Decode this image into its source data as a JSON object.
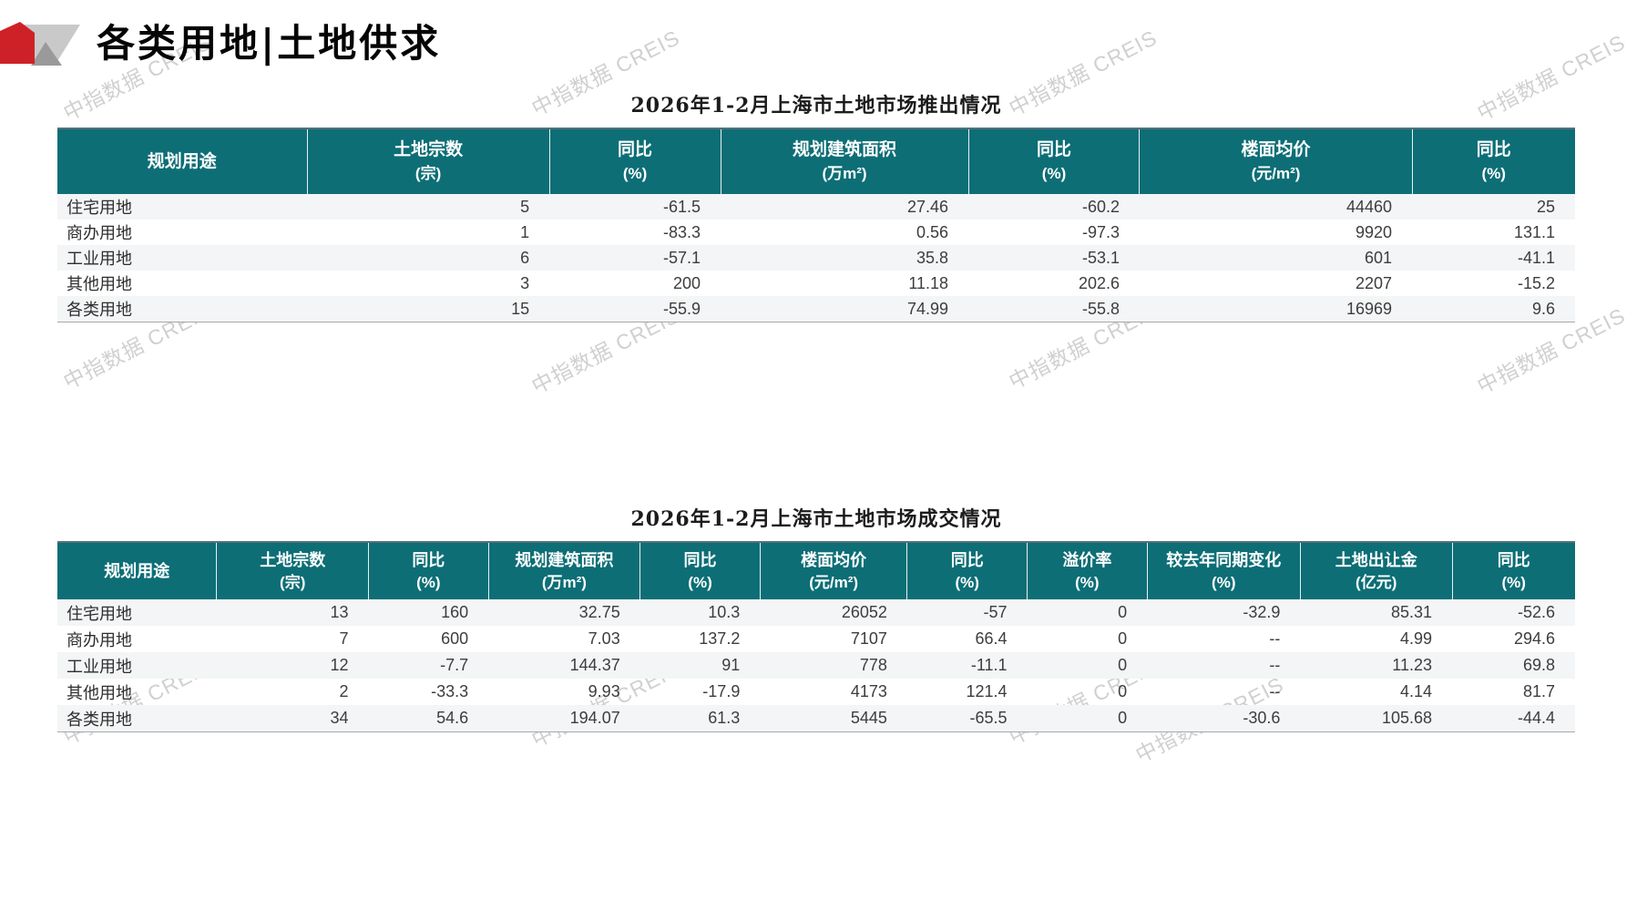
{
  "page": {
    "main_title": "各类用地|土地供求",
    "watermark": "中指数据 CREIS"
  },
  "colors": {
    "header_bg": "#0D6E76",
    "logo_red": "#CE2127",
    "logo_gray_light": "#C9C9C9",
    "logo_gray_dark": "#9A9A9A",
    "row_stripe": "#F3F5F6",
    "watermark_gray": "#C8C8C8"
  },
  "table1": {
    "title": "2026年1-2月上海市土地市场推出情况",
    "columns": [
      {
        "line1": "规划用途",
        "line2": ""
      },
      {
        "line1": "土地宗数",
        "line2": "(宗)"
      },
      {
        "line1": "同比",
        "line2": "(%)"
      },
      {
        "line1": "规划建筑面积",
        "line2": "(万m²)"
      },
      {
        "line1": "同比",
        "line2": "(%)"
      },
      {
        "line1": "楼面均价",
        "line2": "(元/m²)"
      },
      {
        "line1": "同比",
        "line2": "(%)"
      }
    ],
    "rows": [
      [
        "住宅用地",
        "5",
        "-61.5",
        "27.46",
        "-60.2",
        "44460",
        "25"
      ],
      [
        "商办用地",
        "1",
        "-83.3",
        "0.56",
        "-97.3",
        "9920",
        "131.1"
      ],
      [
        "工业用地",
        "6",
        "-57.1",
        "35.8",
        "-53.1",
        "601",
        "-41.1"
      ],
      [
        "其他用地",
        "3",
        "200",
        "11.18",
        "202.6",
        "2207",
        "-15.2"
      ],
      [
        "各类用地",
        "15",
        "-55.9",
        "74.99",
        "-55.8",
        "16969",
        "9.6"
      ]
    ]
  },
  "table2": {
    "title": "2026年1-2月上海市土地市场成交情况",
    "columns": [
      {
        "line1": "规划用途",
        "line2": ""
      },
      {
        "line1": "土地宗数",
        "line2": "(宗)"
      },
      {
        "line1": "同比",
        "line2": "(%)"
      },
      {
        "line1": "规划建筑面积",
        "line2": "(万m²)"
      },
      {
        "line1": "同比",
        "line2": "(%)"
      },
      {
        "line1": "楼面均价",
        "line2": "(元/m²)"
      },
      {
        "line1": "同比",
        "line2": "(%)"
      },
      {
        "line1": "溢价率",
        "line2": "(%)"
      },
      {
        "line1": "较去年同期变化",
        "line2": "(%)"
      },
      {
        "line1": "土地出让金",
        "line2": "(亿元)"
      },
      {
        "line1": "同比",
        "line2": "(%)"
      }
    ],
    "rows": [
      [
        "住宅用地",
        "13",
        "160",
        "32.75",
        "10.3",
        "26052",
        "-57",
        "0",
        "-32.9",
        "85.31",
        "-52.6"
      ],
      [
        "商办用地",
        "7",
        "600",
        "7.03",
        "137.2",
        "7107",
        "66.4",
        "0",
        "--",
        "4.99",
        "294.6"
      ],
      [
        "工业用地",
        "12",
        "-7.7",
        "144.37",
        "91",
        "778",
        "-11.1",
        "0",
        "--",
        "11.23",
        "69.8"
      ],
      [
        "其他用地",
        "2",
        "-33.3",
        "9.93",
        "-17.9",
        "4173",
        "121.4",
        "0",
        "--",
        "4.14",
        "81.7"
      ],
      [
        "各类用地",
        "34",
        "54.6",
        "194.07",
        "61.3",
        "5445",
        "-65.5",
        "0",
        "-30.6",
        "105.68",
        "-44.4"
      ]
    ]
  }
}
